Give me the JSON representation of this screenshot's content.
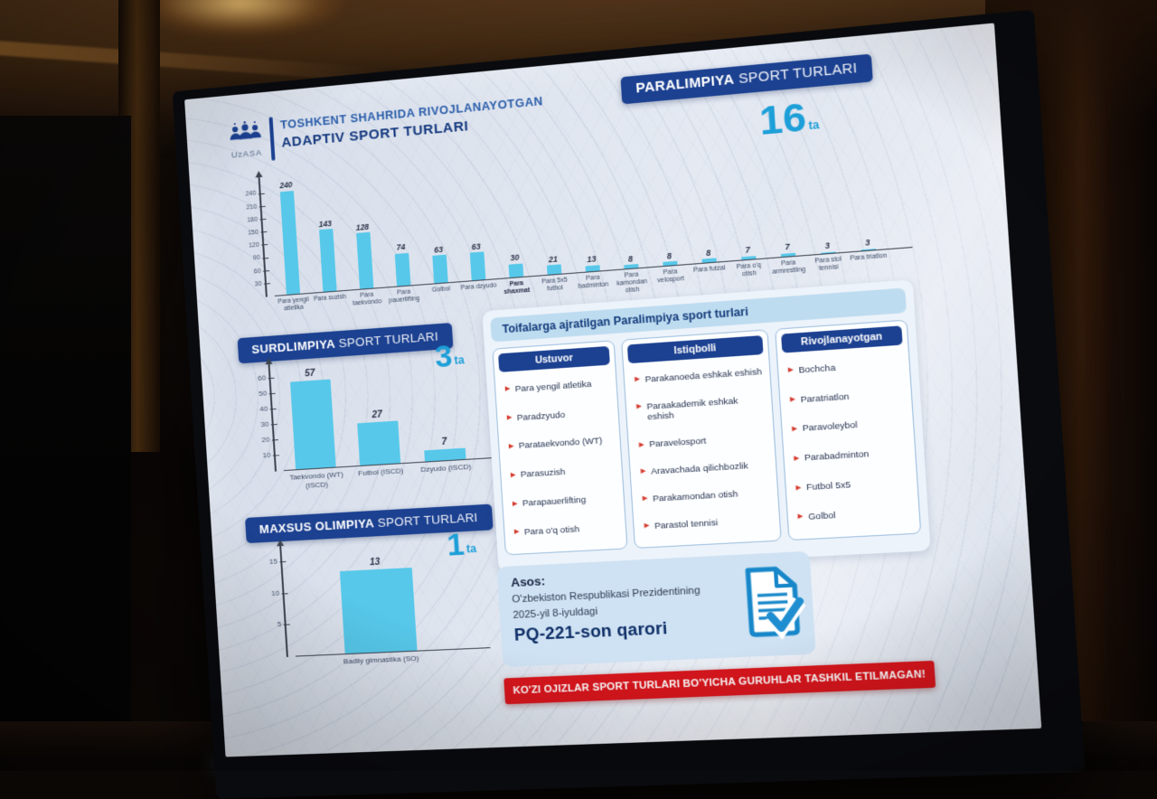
{
  "slide": {
    "logo": {
      "org": "UzASA",
      "icon": "people-group-icon"
    },
    "header": {
      "line1": "TOSHKENT SHAHRIDA RIVOJLANAYOTGAN",
      "line2": "ADAPTIV SPORT TURLARI"
    },
    "sections": {
      "paralimpiya": {
        "title_strong": "PARALIMPIYA",
        "title_rest": " SPORT TURLARI",
        "count": "16",
        "unit": "ta"
      },
      "surdlimpiya": {
        "title_strong": "SURDLIMPIYA",
        "title_rest": " SPORT TURLARI",
        "count": "3",
        "unit": "ta"
      },
      "maxsus": {
        "title_strong": "MAXSUS OLIMPIYA",
        "title_rest": " SPORT TURLARI",
        "count": "1",
        "unit": "ta"
      }
    },
    "categories_panel": {
      "title": "Toifalarga ajratilgan Paralimpiya sport turlari",
      "columns": [
        {
          "header": "Ustuvor",
          "items": [
            "Para yengil atletika",
            "Paradzyudo",
            "Parataekvondo (WT)",
            "Parasuzish",
            "Parapauerlifting",
            "Para o'q otish"
          ]
        },
        {
          "header": "Istiqbolli",
          "items": [
            "Parakanoeda eshkak eshish",
            "Paraakademik eshkak eshish",
            "Paravelosport",
            "Aravachada qilichbozlik",
            "Parakamondan otish",
            "Parastol tennisi"
          ]
        },
        {
          "header": "Rivojlanayotgan",
          "items": [
            "Bochcha",
            "Paratriatlon",
            "Paravoleybol",
            "Parabadminton",
            "Futbol 5x5",
            "Golbol"
          ]
        }
      ]
    },
    "asos": {
      "label": "Asos:",
      "line1": "O'zbekiston Respublikasi Prezidentining",
      "line2": "2025-yil 8-iyuldagi",
      "line3": "PQ-221-son qarori",
      "icon": "document-check-icon"
    },
    "alert": {
      "text": "KO'ZI OJIZLAR SPORT TURLARI BO'YICHA GURUHLAR TASHKIL ETILMAGAN!"
    }
  },
  "chart_data": [
    {
      "type": "bar",
      "title": "PARALIMPIYA SPORT TURLARI",
      "count_label": "16 ta",
      "categories": [
        "Para yengil atletika",
        "Para suzish",
        "Para taekvondo",
        "Para pauerlifting",
        "Golbol",
        "Para dzyudo",
        "Para shaxmat",
        "Para 5x5 futbol",
        "Para badminton",
        "Para kamondan otish",
        "Para velosport",
        "Para futzal",
        "Para o'q otish",
        "Para armrestling",
        "Para stol tennisi",
        "Para triatlon"
      ],
      "values": [
        240,
        143,
        128,
        74,
        63,
        63,
        30,
        21,
        13,
        8,
        8,
        8,
        7,
        7,
        3,
        3
      ],
      "yticks": [
        30,
        60,
        90,
        120,
        150,
        180,
        210,
        240
      ],
      "ylim": [
        0,
        262
      ],
      "bold_category": "Para shaxmat",
      "bar_color": "#57c8ea",
      "xlabel": "",
      "ylabel": "",
      "grid": false,
      "legend": "none"
    },
    {
      "type": "bar",
      "title": "SURDLIMPIYA SPORT TURLARI",
      "count_label": "3 ta",
      "categories": [
        "Taekvondo (WT) (ISCD)",
        "Futbol (ISCD)",
        "Dzyudo (ISCD)"
      ],
      "values": [
        57,
        27,
        7
      ],
      "yticks": [
        10,
        20,
        30,
        40,
        50,
        60
      ],
      "ylim": [
        0,
        65
      ],
      "bold_category": "",
      "bar_color": "#57c8ea",
      "xlabel": "",
      "ylabel": "",
      "grid": false,
      "legend": "none"
    },
    {
      "type": "bar",
      "title": "MAXSUS OLIMPIYA SPORT TURLARI",
      "count_label": "1 ta",
      "categories": [
        "Badiiy gimnastika (SO)"
      ],
      "values": [
        13
      ],
      "yticks": [
        5,
        10,
        15
      ],
      "ylim": [
        0,
        16.5
      ],
      "bold_category": "",
      "bar_color": "#57c8ea",
      "xlabel": "",
      "ylabel": "",
      "grid": false,
      "legend": "none"
    }
  ],
  "colors": {
    "navy": "#1c4191",
    "bar_cyan": "#57c8ea",
    "count_cyan": "#1d9fd8",
    "alert_red": "#d7161d",
    "bullet_red": "#d43a2e",
    "slide_bg": "#dde4ee"
  }
}
